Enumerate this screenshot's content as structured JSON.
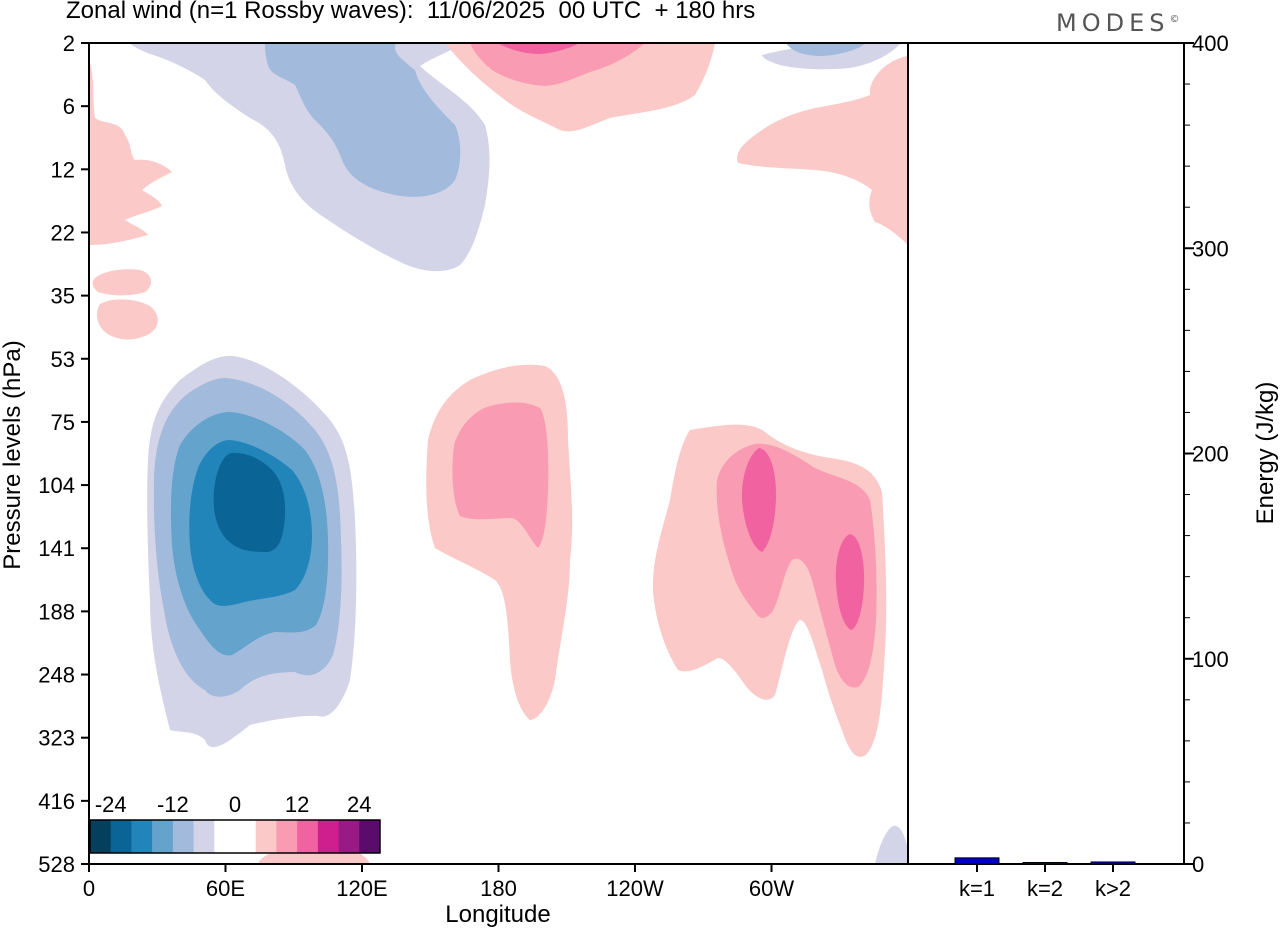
{
  "header": {
    "title": "Zonal wind (n=1 Rossby waves):  11/06/2025  00 UTC  + 180 hrs",
    "brand": "MODES",
    "brand_mark": "©"
  },
  "chart_data": [
    {
      "type": "contour",
      "xlabel": "Longitude",
      "ylabel": "Pressure levels (hPa)",
      "x_ticks": [
        "0",
        "60E",
        "120E",
        "180",
        "120W",
        "60W"
      ],
      "x_tick_values": [
        0,
        60,
        120,
        180,
        240,
        300
      ],
      "xlim": [
        0,
        360
      ],
      "y_ticks": [
        "2",
        "6",
        "12",
        "22",
        "35",
        "53",
        "75",
        "104",
        "141",
        "188",
        "248",
        "323",
        "416",
        "528"
      ],
      "colorbar": {
        "labels": [
          "-24",
          "-12",
          "0",
          "12",
          "24"
        ],
        "label_values": [
          -24,
          -12,
          0,
          12,
          24
        ],
        "colors": [
          "#053f5e",
          "#0a6596",
          "#2185ba",
          "#63a3cc",
          "#a2badb",
          "#d4d4e8",
          "#ffffff",
          "#ffffff",
          "#fbc9c8",
          "#f99bb2",
          "#f062a0",
          "#cf1e8d",
          "#981a85",
          "#5a0b6b"
        ]
      },
      "regions": [
        {
          "lon": 72,
          "level": "104",
          "sign": "negative",
          "min": -22
        },
        {
          "lon": 62,
          "level": "12",
          "sign": "negative",
          "min": -6
        },
        {
          "lon": 190,
          "level": "2",
          "sign": "positive",
          "max": 10
        },
        {
          "lon": 175,
          "level": "104",
          "sign": "positive",
          "max": 8
        },
        {
          "lon": 297,
          "level": "104",
          "sign": "positive",
          "max": 11
        },
        {
          "lon": 334,
          "level": "188",
          "sign": "positive",
          "max": 11
        },
        {
          "lon": 8,
          "level": "12",
          "sign": "positive",
          "max": 3
        }
      ]
    },
    {
      "type": "bar",
      "categories": [
        "k=1",
        "k=2",
        "k>2"
      ],
      "values": [
        3,
        0.5,
        1
      ],
      "ylabel": "Energy (J/kg)",
      "ylim": [
        0,
        400
      ],
      "y_ticks": [
        0,
        100,
        200,
        300,
        400
      ],
      "y_minor_step": 20,
      "color": "#0000c8"
    }
  ]
}
